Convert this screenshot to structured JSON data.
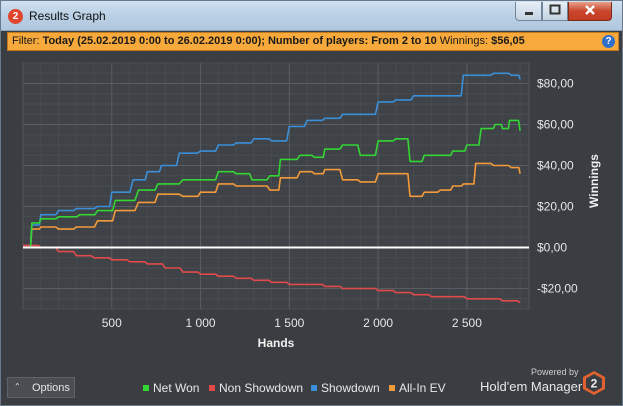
{
  "window": {
    "title": "Results Graph",
    "app_icon_text": "2"
  },
  "filter": {
    "prefix": "Filter:",
    "criteria": "Today (25.02.2019 0:00 to 26.02.2019 0:00); Number of players: From 2 to 10",
    "winnings_label": "Winnings:",
    "winnings_value": "$56,05",
    "help_icon_text": "?"
  },
  "chart_data": {
    "type": "line",
    "xlabel": "Hands",
    "ylabel": "Winnings",
    "xlim": [
      0,
      2850
    ],
    "ylim": [
      -30,
      90
    ],
    "x_ticks": [
      500,
      1000,
      1500,
      2000,
      2500
    ],
    "x_tick_labels": [
      "500",
      "1 000",
      "1 500",
      "2 000",
      "2 500"
    ],
    "y_ticks": [
      80,
      60,
      40,
      20,
      0,
      -20
    ],
    "y_tick_labels": [
      "$80,00",
      "$60,00",
      "$40,00",
      "$20,00",
      "$0,00",
      "-$20,00"
    ],
    "grid": true,
    "legend_position": "bottom",
    "series": [
      {
        "name": "Net Won",
        "color": "#33d633",
        "points": [
          [
            0,
            0
          ],
          [
            50,
            12
          ],
          [
            100,
            14
          ],
          [
            200,
            15
          ],
          [
            320,
            16
          ],
          [
            420,
            18
          ],
          [
            520,
            23
          ],
          [
            650,
            28
          ],
          [
            760,
            31
          ],
          [
            900,
            33
          ],
          [
            1000,
            33
          ],
          [
            1100,
            37
          ],
          [
            1200,
            36
          ],
          [
            1290,
            33
          ],
          [
            1390,
            35
          ],
          [
            1450,
            43
          ],
          [
            1560,
            45
          ],
          [
            1640,
            44
          ],
          [
            1700,
            48
          ],
          [
            1800,
            50
          ],
          [
            1900,
            45
          ],
          [
            2000,
            52
          ],
          [
            2100,
            53
          ],
          [
            2180,
            42
          ],
          [
            2260,
            45
          ],
          [
            2350,
            45
          ],
          [
            2420,
            47
          ],
          [
            2500,
            50
          ],
          [
            2580,
            58
          ],
          [
            2660,
            60
          ],
          [
            2700,
            58
          ],
          [
            2740,
            62
          ],
          [
            2800,
            57
          ]
        ]
      },
      {
        "name": "Non Showdown",
        "color": "#e14a4a",
        "points": [
          [
            0,
            1
          ],
          [
            100,
            0
          ],
          [
            200,
            -2
          ],
          [
            300,
            -4
          ],
          [
            400,
            -5
          ],
          [
            500,
            -6
          ],
          [
            600,
            -7
          ],
          [
            700,
            -8
          ],
          [
            800,
            -10
          ],
          [
            900,
            -12
          ],
          [
            1000,
            -13
          ],
          [
            1100,
            -14
          ],
          [
            1200,
            -15
          ],
          [
            1300,
            -16
          ],
          [
            1400,
            -17
          ],
          [
            1500,
            -18
          ],
          [
            1600,
            -18
          ],
          [
            1700,
            -19
          ],
          [
            1800,
            -20
          ],
          [
            1900,
            -20
          ],
          [
            2000,
            -21
          ],
          [
            2100,
            -22
          ],
          [
            2200,
            -23
          ],
          [
            2300,
            -24
          ],
          [
            2400,
            -24
          ],
          [
            2500,
            -25
          ],
          [
            2600,
            -25
          ],
          [
            2700,
            -26
          ],
          [
            2800,
            -27
          ]
        ]
      },
      {
        "name": "Showdown",
        "color": "#3b8fd8",
        "points": [
          [
            0,
            0
          ],
          [
            50,
            11
          ],
          [
            100,
            16
          ],
          [
            200,
            18
          ],
          [
            300,
            19
          ],
          [
            420,
            20
          ],
          [
            500,
            27
          ],
          [
            620,
            33
          ],
          [
            700,
            37
          ],
          [
            780,
            40
          ],
          [
            880,
            46
          ],
          [
            1000,
            47
          ],
          [
            1100,
            50
          ],
          [
            1200,
            51
          ],
          [
            1300,
            53
          ],
          [
            1400,
            52
          ],
          [
            1500,
            59
          ],
          [
            1600,
            62
          ],
          [
            1700,
            63
          ],
          [
            1800,
            65
          ],
          [
            1900,
            65
          ],
          [
            2000,
            71
          ],
          [
            2100,
            72
          ],
          [
            2200,
            74
          ],
          [
            2300,
            74
          ],
          [
            2400,
            74
          ],
          [
            2480,
            84
          ],
          [
            2550,
            84
          ],
          [
            2650,
            85
          ],
          [
            2750,
            84
          ],
          [
            2800,
            82
          ]
        ]
      },
      {
        "name": "All-In EV",
        "color": "#f39a3a",
        "points": [
          [
            0,
            0
          ],
          [
            50,
            9
          ],
          [
            100,
            10
          ],
          [
            200,
            9
          ],
          [
            300,
            10
          ],
          [
            420,
            13
          ],
          [
            520,
            18
          ],
          [
            650,
            22
          ],
          [
            760,
            26
          ],
          [
            900,
            25
          ],
          [
            1000,
            27
          ],
          [
            1100,
            31
          ],
          [
            1200,
            30
          ],
          [
            1290,
            30
          ],
          [
            1390,
            28
          ],
          [
            1450,
            34
          ],
          [
            1560,
            37
          ],
          [
            1640,
            36
          ],
          [
            1700,
            38
          ],
          [
            1800,
            33
          ],
          [
            1900,
            32
          ],
          [
            2000,
            36
          ],
          [
            2100,
            36
          ],
          [
            2180,
            25
          ],
          [
            2260,
            27
          ],
          [
            2350,
            28
          ],
          [
            2420,
            30
          ],
          [
            2480,
            31
          ],
          [
            2550,
            41
          ],
          [
            2650,
            40
          ],
          [
            2750,
            39
          ],
          [
            2800,
            36
          ]
        ]
      }
    ]
  },
  "footer": {
    "options_label": "Options",
    "caret_glyph": "⌃",
    "legend": [
      {
        "label": "Net Won",
        "color": "#33d633"
      },
      {
        "label": "Non Showdown",
        "color": "#e14a4a"
      },
      {
        "label": "Showdown",
        "color": "#3b8fd8"
      },
      {
        "label": "All-In EV",
        "color": "#f39a3a"
      }
    ],
    "powered_by": "Powered by",
    "brand": "Hold'em Manager",
    "brand_logo_text": "2"
  }
}
